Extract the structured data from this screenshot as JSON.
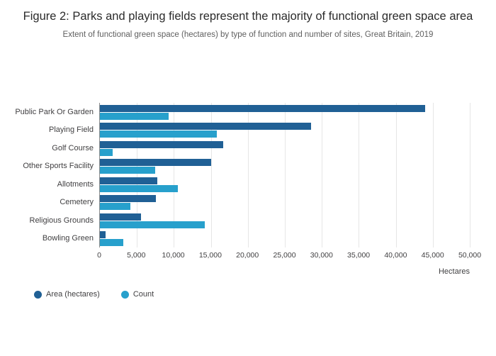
{
  "title": "Figure 2: Parks and playing fields represent the majority of functional green space area",
  "subtitle": "Extent of functional green space (hectares) by type of function and number of sites, Great Britain, 2019",
  "chart_data": {
    "type": "bar",
    "orientation": "horizontal",
    "title": "Figure 2: Parks and playing fields represent the majority of functional green space area",
    "subtitle": "Extent of functional green space (hectares) by type of function and number of sites, Great Britain, 2019",
    "categories": [
      "Public Park Or Garden",
      "Playing Field",
      "Golf Course",
      "Other Sports Facility",
      "Allotments",
      "Cemetery",
      "Religious Grounds",
      "Bowling Green"
    ],
    "series": [
      {
        "name": "Area (hectares)",
        "color": "#206095",
        "values": [
          44000,
          28500,
          16700,
          15000,
          7800,
          7600,
          5600,
          800
        ]
      },
      {
        "name": "Count",
        "color": "#27a0cc",
        "values": [
          9300,
          15800,
          1700,
          7500,
          10500,
          4100,
          14200,
          3200
        ]
      }
    ],
    "xlabel": "Hectares",
    "ylabel": "",
    "xlim": [
      0,
      50000
    ],
    "xticks": [
      "0",
      "5,000",
      "10,000",
      "15,000",
      "20,000",
      "25,000",
      "30,000",
      "35,000",
      "40,000",
      "45,000",
      "50,000"
    ],
    "grid": true,
    "legend_position": "bottom-left"
  },
  "legend": {
    "items": [
      {
        "label": "Area (hectares)",
        "color": "#206095"
      },
      {
        "label": "Count",
        "color": "#27a0cc"
      }
    ]
  }
}
